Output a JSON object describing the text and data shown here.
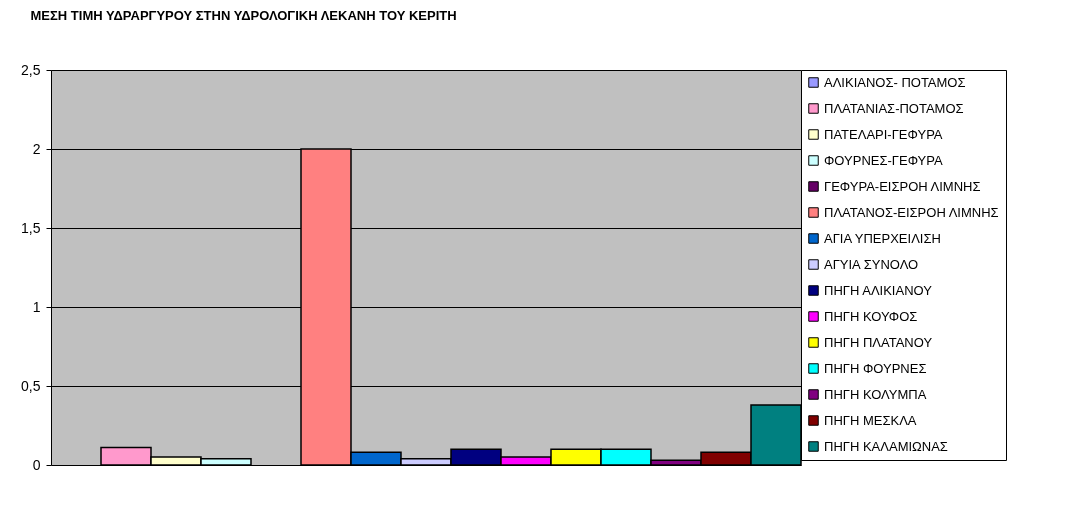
{
  "chart_data": {
    "type": "bar",
    "title": "ΜΕΣΗ ΤΙΜΗ ΥΔΡΑΡΓΥΡΟΥ ΣΤΗΝ ΥΔΡΟΛΟΓΙΚΗ ΛΕΚΑΝΗ ΤΟΥ ΚΕΡΙΤΗ",
    "categories": [
      null
    ],
    "series": [
      {
        "name": "ΑΛΙΚΙΑΝΟΣ- ΠΟΤΑΜΟΣ",
        "color": "#9999ff",
        "values": [
          0
        ]
      },
      {
        "name": "ΠΛΑΤΑΝΙΑΣ-ΠΟΤΑΜΟΣ",
        "color": "#ff99cc",
        "values": [
          0.11
        ]
      },
      {
        "name": "ΠΑΤΕΛΑΡΙ-ΓΕΦΥΡΑ",
        "color": "#ffffcc",
        "values": [
          0.05
        ]
      },
      {
        "name": "ΦΟΥΡΝΕΣ-ΓΕΦΥΡΑ",
        "color": "#ccffff",
        "values": [
          0.04
        ]
      },
      {
        "name": "ΓΕΦΥΡΑ-ΕΙΣΡΟΗ ΛΙΜΝΗΣ",
        "color": "#660066",
        "values": [
          0
        ]
      },
      {
        "name": "ΠΛΑΤΑΝΟΣ-ΕΙΣΡΟΗ ΛΙΜΝΗΣ",
        "color": "#ff8080",
        "values": [
          2
        ]
      },
      {
        "name": "ΑΓΙΑ ΥΠΕΡΧΕΙΛΙΣΗ",
        "color": "#0066cc",
        "values": [
          0.08
        ]
      },
      {
        "name": "ΑΓΥΙΑ ΣΥΝΟΛΟ",
        "color": "#ccccff",
        "values": [
          0.04
        ]
      },
      {
        "name": "ΠΗΓΗ ΑΛΙΚΙΑΝΟΥ",
        "color": "#000080",
        "values": [
          0.1
        ]
      },
      {
        "name": "ΠΗΓΗ ΚΟΥΦΟΣ",
        "color": "#ff00ff",
        "values": [
          0.05
        ]
      },
      {
        "name": "ΠΗΓΗ ΠΛΑΤΑΝΟΥ",
        "color": "#ffff00",
        "values": [
          0.1
        ]
      },
      {
        "name": "ΠΗΓΗ ΦΟΥΡΝΕΣ",
        "color": "#00ffff",
        "values": [
          0.1
        ]
      },
      {
        "name": "ΠΗΓΗ ΚΟΛΥΜΠΑ",
        "color": "#800080",
        "values": [
          0.03
        ]
      },
      {
        "name": "ΠΗΓΗ ΜΕΣΚΛΑ",
        "color": "#800000",
        "values": [
          0.08
        ]
      },
      {
        "name": "ΠΗΓΗ ΚΑΛΑΜΙΩΝΑΣ",
        "color": "#008080",
        "values": [
          0.38
        ]
      }
    ],
    "ylim": [
      0,
      2.5
    ],
    "yticks": [
      0,
      {
        "value": 0.5,
        "label": "0,5"
      },
      1,
      {
        "value": 1.5,
        "label": "1,5"
      },
      2,
      {
        "value": 2.5,
        "label": "2,5"
      }
    ],
    "grid": "y",
    "legend": "right"
  }
}
